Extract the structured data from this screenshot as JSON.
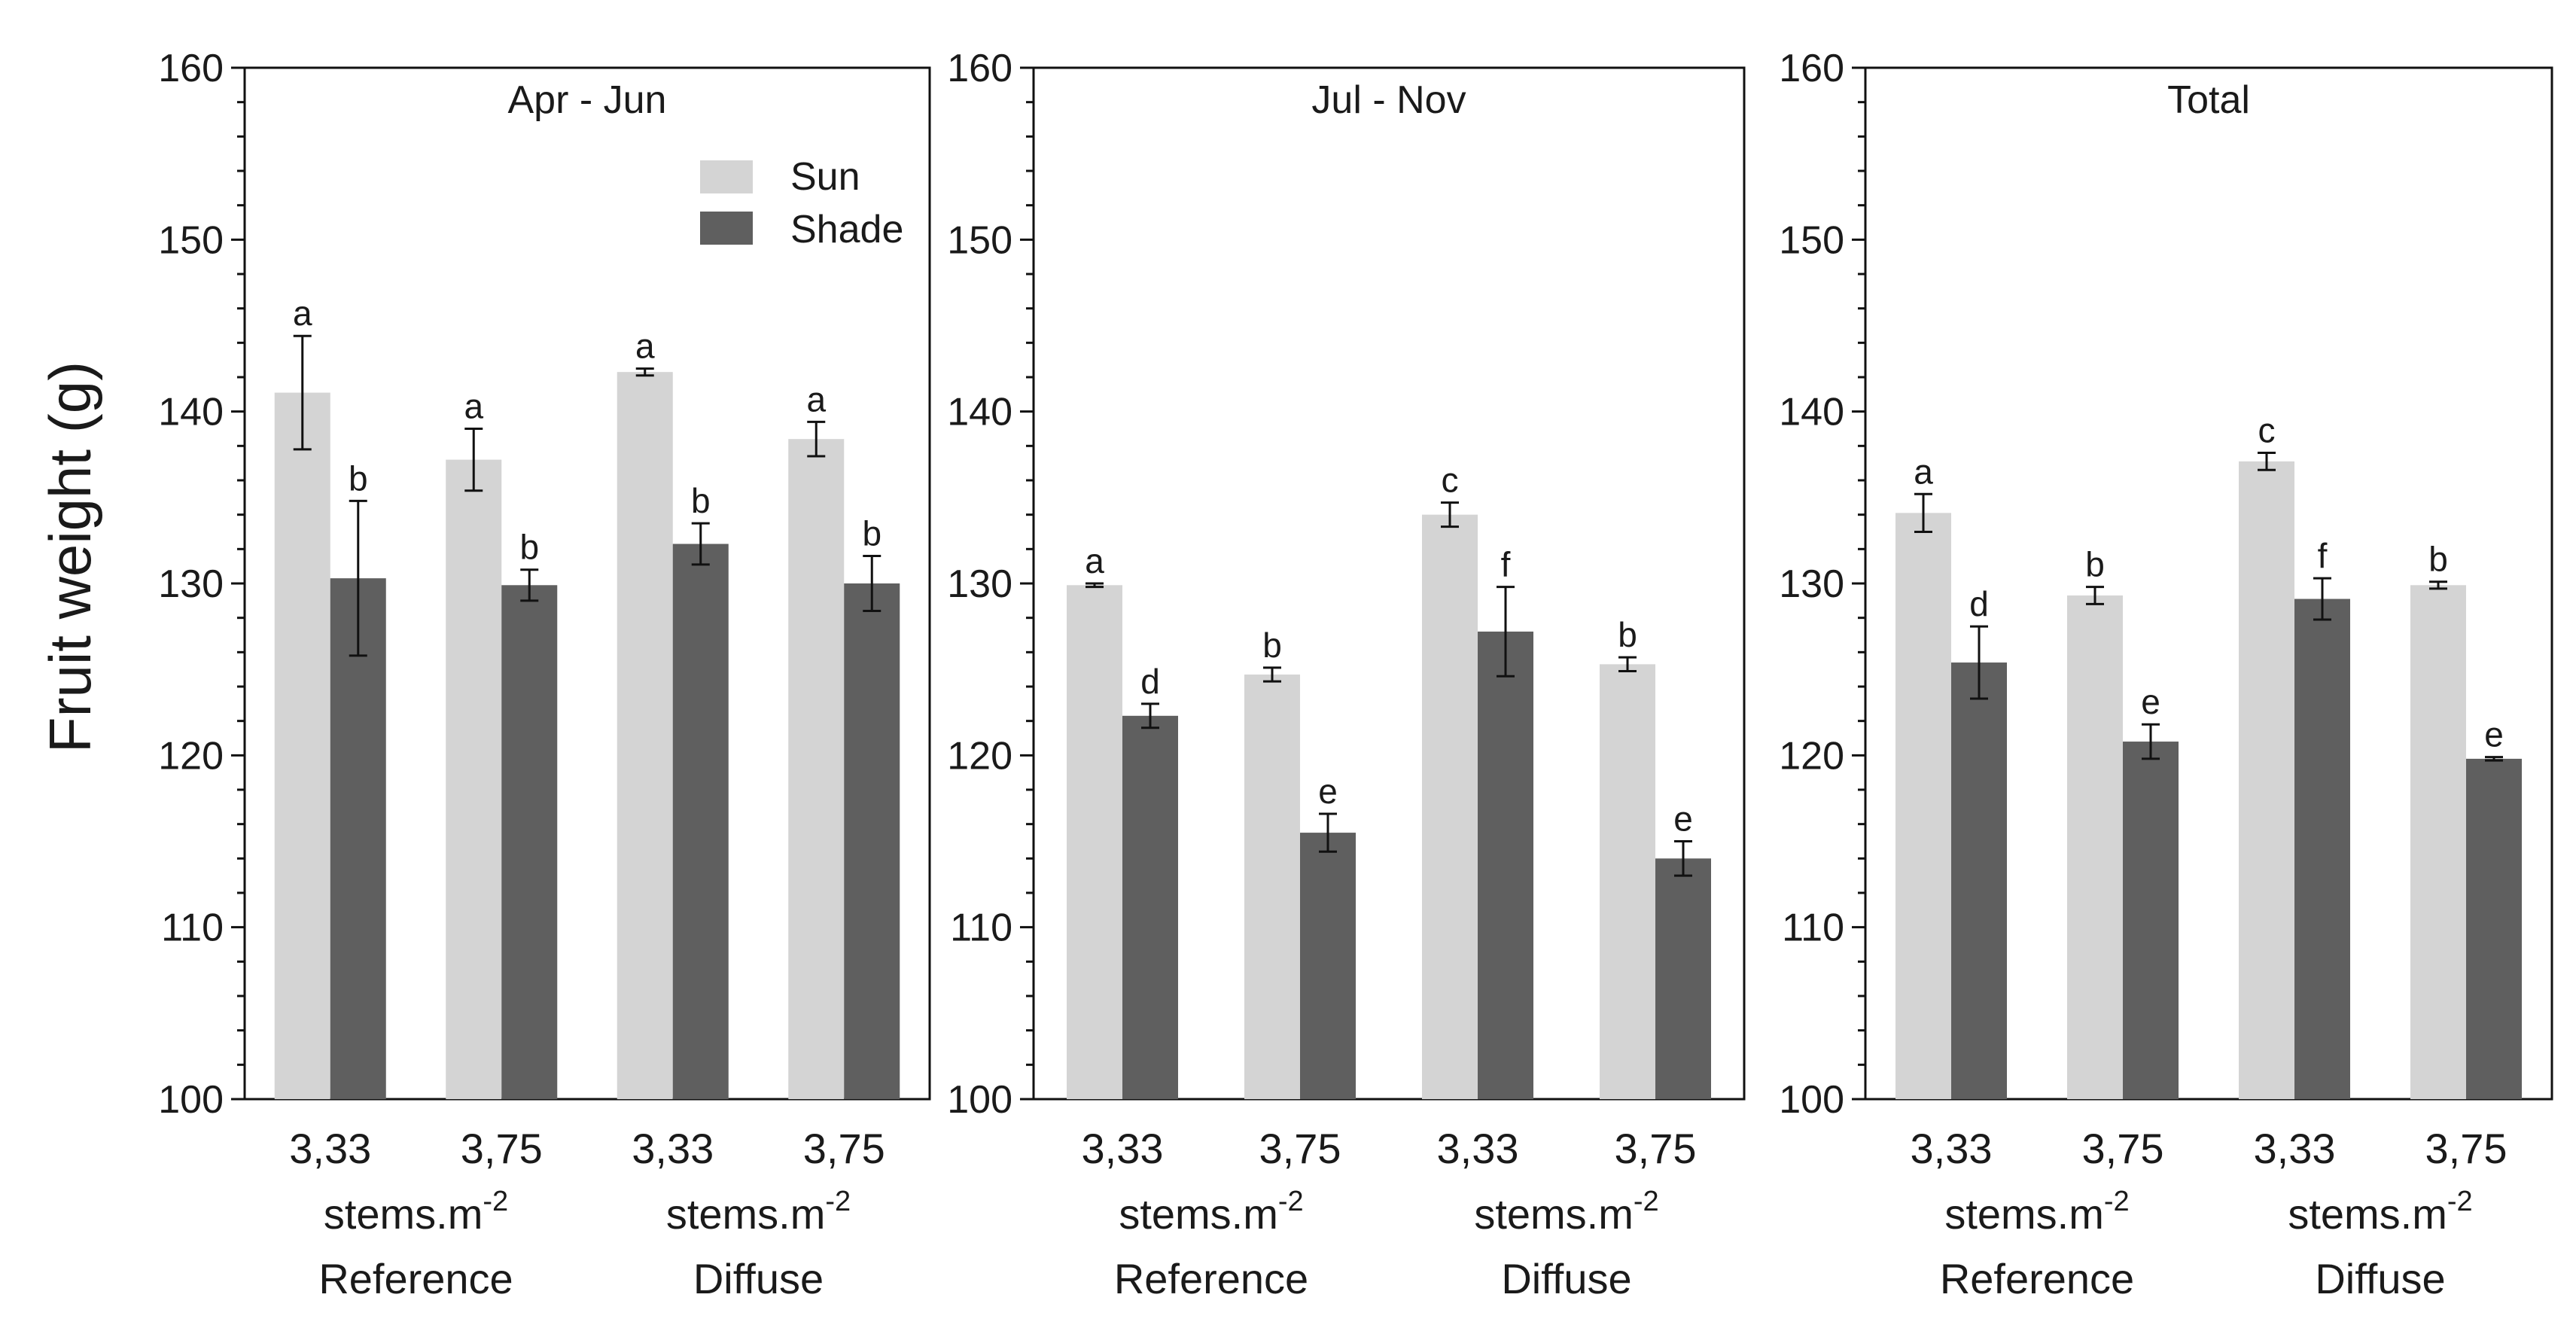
{
  "figure": {
    "ylabel": "Fruit weight (g)"
  },
  "legend": {
    "entries": [
      {
        "label": "Sun",
        "color": "#d4d4d4"
      },
      {
        "label": "Shade",
        "color": "#5f5f5f"
      }
    ]
  },
  "chart_data": [
    {
      "type": "bar",
      "title": "Apr - Jun",
      "categories": [
        "3,33",
        "3,75",
        "3,33",
        "3,75"
      ],
      "category_unit": "stems.m",
      "category_unit_exp": "-2",
      "groups": [
        "Reference",
        "Diffuse"
      ],
      "ylim": [
        100,
        160
      ],
      "yticks": [
        "100",
        "110",
        "120",
        "130",
        "140",
        "150",
        "160"
      ],
      "series": [
        {
          "name": "Sun",
          "values": [
            141.1,
            137.2,
            142.3,
            138.4
          ],
          "errors": [
            3.3,
            1.8,
            0.2,
            1.0
          ],
          "labels": [
            "a",
            "a",
            "a",
            "a"
          ]
        },
        {
          "name": "Shade",
          "values": [
            130.3,
            129.9,
            132.3,
            130.0
          ],
          "errors": [
            4.5,
            0.9,
            1.2,
            1.6
          ],
          "labels": [
            "b",
            "b",
            "b",
            "b"
          ]
        }
      ]
    },
    {
      "type": "bar",
      "title": "Jul - Nov",
      "categories": [
        "3,33",
        "3,75",
        "3,33",
        "3,75"
      ],
      "category_unit": "stems.m",
      "category_unit_exp": "-2",
      "groups": [
        "Reference",
        "Diffuse"
      ],
      "ylim": [
        100,
        160
      ],
      "yticks": [
        "100",
        "110",
        "120",
        "130",
        "140",
        "150",
        "160"
      ],
      "series": [
        {
          "name": "Sun",
          "values": [
            129.9,
            124.7,
            134.0,
            125.3
          ],
          "errors": [
            0.1,
            0.4,
            0.7,
            0.4
          ],
          "labels": [
            "a",
            "b",
            "c",
            "b"
          ]
        },
        {
          "name": "Shade",
          "values": [
            122.3,
            115.5,
            127.2,
            114.0
          ],
          "errors": [
            0.7,
            1.1,
            2.6,
            1.0
          ],
          "labels": [
            "d",
            "e",
            "f",
            "e"
          ]
        }
      ]
    },
    {
      "type": "bar",
      "title": "Total",
      "categories": [
        "3,33",
        "3,75",
        "3,33",
        "3,75"
      ],
      "category_unit": "stems.m",
      "category_unit_exp": "-2",
      "groups": [
        "Reference",
        "Diffuse"
      ],
      "ylim": [
        100,
        160
      ],
      "yticks": [
        "100",
        "110",
        "120",
        "130",
        "140",
        "150",
        "160"
      ],
      "series": [
        {
          "name": "Sun",
          "values": [
            134.1,
            129.3,
            137.1,
            129.9
          ],
          "errors": [
            1.1,
            0.5,
            0.5,
            0.2
          ],
          "labels": [
            "a",
            "b",
            "c",
            "b"
          ]
        },
        {
          "name": "Shade",
          "values": [
            125.4,
            120.8,
            129.1,
            119.8
          ],
          "errors": [
            2.1,
            1.0,
            1.2,
            0.1
          ],
          "labels": [
            "d",
            "e",
            "f",
            "e"
          ]
        }
      ]
    }
  ]
}
